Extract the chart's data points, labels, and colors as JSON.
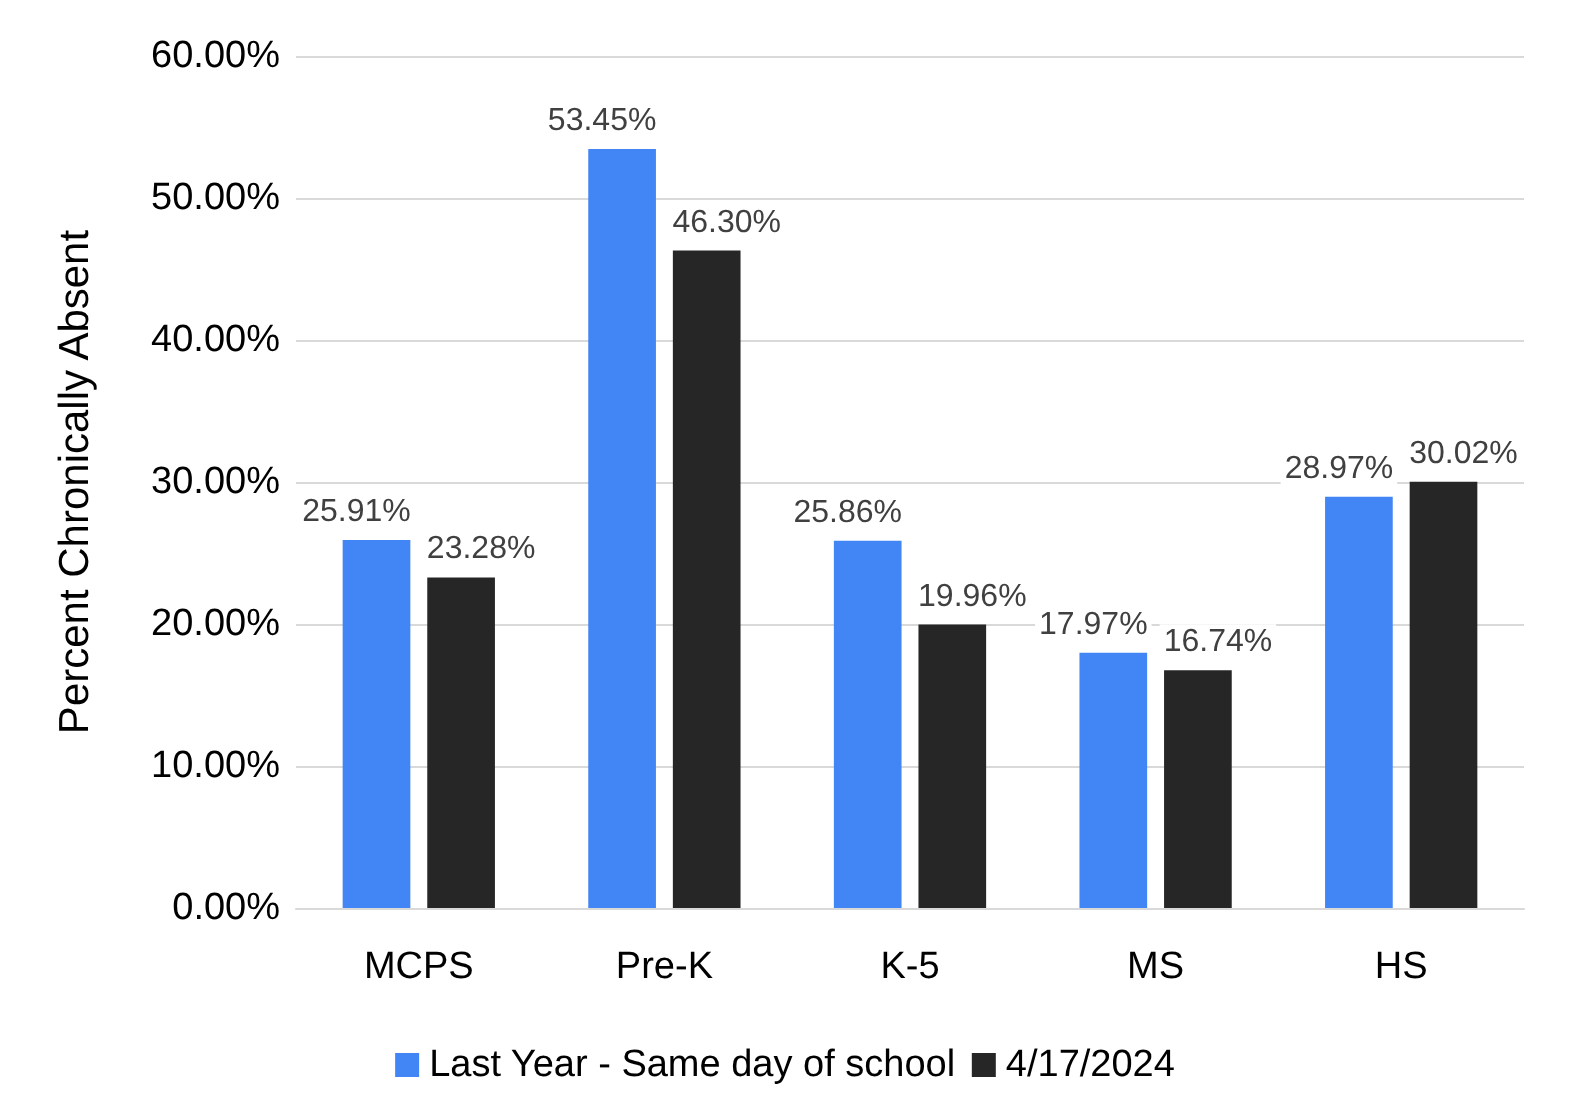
{
  "chart_data": {
    "type": "bar",
    "ylabel": "Percent Chronically Absent",
    "categories": [
      "MCPS",
      "Pre-K",
      "K-5",
      "MS",
      "HS"
    ],
    "series": [
      {
        "name": "Last Year - Same day of school",
        "color": "#4285f4",
        "values": [
          25.91,
          53.45,
          25.86,
          17.97,
          28.97
        ],
        "value_labels": [
          "25.91%",
          "53.45%",
          "25.86%",
          "17.97%",
          "28.97%"
        ]
      },
      {
        "name": "4/17/2024",
        "color": "#262626",
        "values": [
          23.28,
          46.3,
          19.96,
          16.74,
          30.02
        ],
        "value_labels": [
          "23.28%",
          "46.30%",
          "19.96%",
          "16.74%",
          "30.02%"
        ]
      }
    ],
    "ylim": [
      0,
      60
    ],
    "yticks": [
      {
        "value": 0,
        "label": "0.00%"
      },
      {
        "value": 10,
        "label": "10.00%"
      },
      {
        "value": 20,
        "label": "20.00%"
      },
      {
        "value": 30,
        "label": "30.00%"
      },
      {
        "value": 40,
        "label": "40.00%"
      },
      {
        "value": 50,
        "label": "50.00%"
      },
      {
        "value": 60,
        "label": "60.00%"
      }
    ],
    "grid": "y",
    "legend": "bottom"
  }
}
